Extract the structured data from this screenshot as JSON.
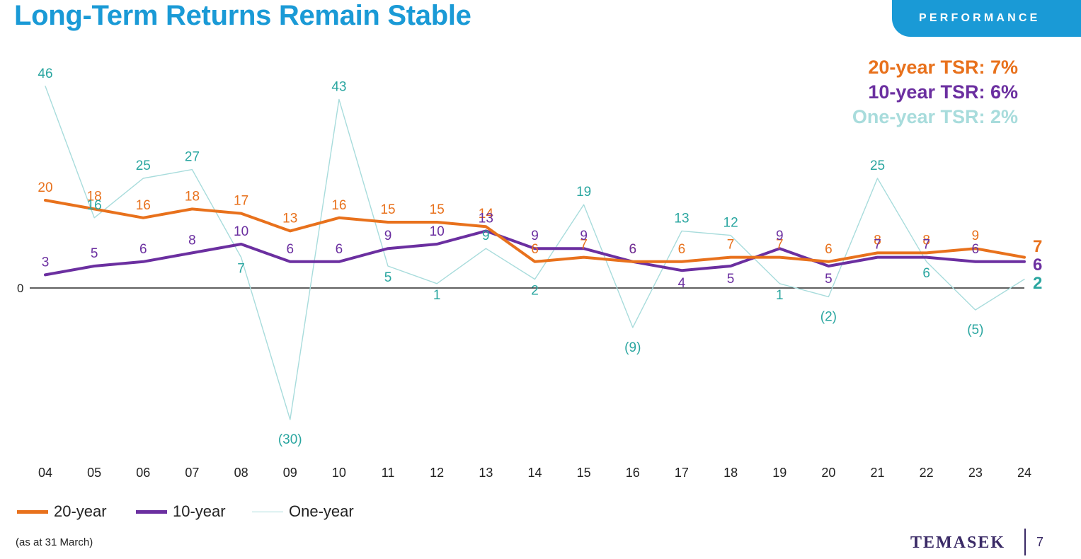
{
  "header": {
    "title": "Long-Term Returns Remain Stable",
    "badge": "PERFORMANCE"
  },
  "tsr_summary": [
    {
      "text": "20-year TSR: 7%",
      "color": "#e8711c"
    },
    {
      "text": "10-year TSR: 6%",
      "color": "#6b2fa0"
    },
    {
      "text": "One-year TSR: 2%",
      "color": "#a8dcdc"
    }
  ],
  "chart_data": {
    "type": "line",
    "categories": [
      "04",
      "05",
      "06",
      "07",
      "08",
      "09",
      "10",
      "11",
      "12",
      "13",
      "14",
      "15",
      "16",
      "17",
      "18",
      "19",
      "20",
      "21",
      "22",
      "23",
      "24"
    ],
    "ylim": [
      -30,
      46
    ],
    "zero_label": "0",
    "grid": false,
    "legend_position": "bottom-left",
    "series": [
      {
        "name": "20-year",
        "color": "#e8711c",
        "values": [
          20,
          18,
          16,
          18,
          17,
          13,
          16,
          15,
          15,
          14,
          6,
          7,
          6,
          6,
          7,
          7,
          6,
          8,
          8,
          9,
          7
        ],
        "labels": [
          "20",
          "18",
          "16",
          "18",
          "17",
          "13",
          "16",
          "15",
          "15",
          "14",
          "6",
          "7",
          "6",
          "6",
          "7",
          "7",
          "6",
          "8",
          "8",
          "9",
          "7"
        ]
      },
      {
        "name": "10-year",
        "color": "#6b2fa0",
        "values": [
          3,
          5,
          6,
          8,
          10,
          6,
          6,
          9,
          10,
          13,
          9,
          9,
          6,
          4,
          5,
          9,
          5,
          7,
          7,
          6,
          6
        ],
        "labels": [
          "3",
          "5",
          "6",
          "8",
          "10",
          "6",
          "6",
          "9",
          "10",
          "13",
          "9",
          "9",
          "6",
          "4",
          "5",
          "9",
          "5",
          "7",
          "7",
          "6",
          "6"
        ]
      },
      {
        "name": "One-year",
        "color": "#a8dcdc",
        "label_color": "#2aa6a0",
        "values": [
          46,
          16,
          25,
          27,
          7,
          -30,
          43,
          5,
          1,
          9,
          2,
          19,
          -9,
          13,
          12,
          1,
          -2,
          25,
          6,
          -5,
          2
        ],
        "labels": [
          "46",
          "16",
          "25",
          "27",
          "7",
          "(30)",
          "43",
          "5",
          "1",
          "9",
          "2",
          "19",
          "(9)",
          "13",
          "12",
          "1",
          "(2)",
          "25",
          "6",
          "(5)",
          "2"
        ]
      }
    ]
  },
  "legend": [
    {
      "label": "20-year",
      "color": "#e8711c"
    },
    {
      "label": "10-year",
      "color": "#6b2fa0"
    },
    {
      "label": "One-year",
      "color": "#a8dcdc"
    }
  ],
  "footnote": "(as at 31 March)",
  "footer": {
    "logo": "TEMASEK",
    "page_number": "7"
  }
}
